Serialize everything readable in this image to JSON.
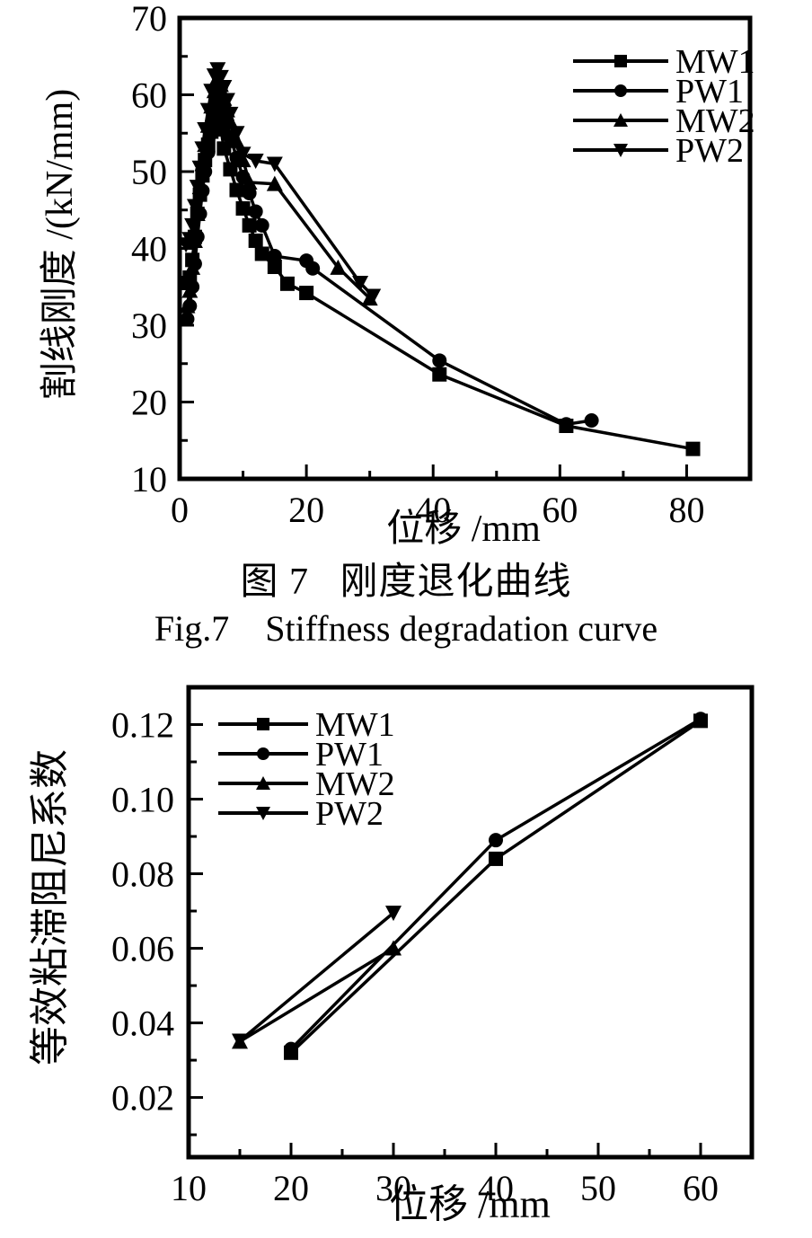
{
  "figure": {
    "caption_zh": "图 7   刚度退化曲线",
    "caption_en": "Fig.7    Stiffness degradation curve"
  },
  "colors": {
    "foreground": "#000000",
    "background": "#ffffff"
  },
  "chart_data": [
    {
      "type": "line",
      "title": "",
      "xlabel": "位移 /mm",
      "ylabel": "割线刚度 /(kN/mm)",
      "xlim": [
        0,
        90
      ],
      "ylim": [
        10,
        70
      ],
      "grid": false,
      "legend_position": "top-right",
      "xticks": {
        "values": [
          0,
          20,
          40,
          60,
          80
        ],
        "labels": [
          "0",
          "20",
          "40",
          "60",
          "80"
        ],
        "minor": [
          10,
          30,
          50,
          70,
          90
        ]
      },
      "yticks": {
        "values": [
          10,
          20,
          30,
          40,
          50,
          60,
          70
        ],
        "labels": [
          "10",
          "20",
          "30",
          "40",
          "50",
          "60",
          "70"
        ],
        "minor": [
          15,
          25,
          35,
          45,
          55,
          65
        ]
      },
      "series": [
        {
          "name": "MW1",
          "marker": "square",
          "points": [
            [
              1.2,
              35.5
            ],
            [
              1.6,
              36.2
            ],
            [
              2,
              38.5
            ],
            [
              2.4,
              41.5
            ],
            [
              2.8,
              44.5
            ],
            [
              3.2,
              47
            ],
            [
              3.6,
              49.5
            ],
            [
              4,
              51.5
            ],
            [
              4.5,
              53.5
            ],
            [
              5,
              55.2
            ],
            [
              5.5,
              56.5
            ],
            [
              6,
              57.5
            ],
            [
              6.5,
              55.5
            ],
            [
              7,
              53
            ],
            [
              8,
              50.3
            ],
            [
              9,
              47.6
            ],
            [
              10,
              45.2
            ],
            [
              11,
              43
            ],
            [
              12,
              41
            ],
            [
              13,
              39.3
            ],
            [
              15,
              37.6
            ],
            [
              17,
              35.4
            ],
            [
              20,
              34.2
            ],
            [
              41,
              23.6
            ],
            [
              61,
              16.9
            ],
            [
              81,
              13.9
            ]
          ]
        },
        {
          "name": "PW1",
          "marker": "circle",
          "points": [
            [
              1.2,
              30.8
            ],
            [
              1.6,
              32.5
            ],
            [
              2,
              35
            ],
            [
              2.4,
              38
            ],
            [
              2.8,
              41.5
            ],
            [
              3.2,
              44.5
            ],
            [
              3.6,
              47.5
            ],
            [
              4,
              50
            ],
            [
              4.5,
              52.5
            ],
            [
              5,
              55
            ],
            [
              5.5,
              57.5
            ],
            [
              6,
              59.5
            ],
            [
              6.5,
              61
            ],
            [
              7,
              58.5
            ],
            [
              7.5,
              56.5
            ],
            [
              8,
              54.5
            ],
            [
              9,
              51.8
            ],
            [
              10,
              49.3
            ],
            [
              11,
              47.2
            ],
            [
              12,
              44.8
            ],
            [
              13,
              43
            ],
            [
              15,
              39
            ],
            [
              20,
              38.4
            ],
            [
              21,
              37.4
            ],
            [
              41,
              25.4
            ],
            [
              61,
              17.1
            ],
            [
              65,
              17.6
            ]
          ]
        },
        {
          "name": "MW2",
          "marker": "triangle-up",
          "points": [
            [
              1.2,
              32.5
            ],
            [
              1.6,
              34.5
            ],
            [
              2,
              37.5
            ],
            [
              2.4,
              41
            ],
            [
              2.8,
              44.5
            ],
            [
              3.2,
              48
            ],
            [
              3.6,
              51
            ],
            [
              4,
              53.5
            ],
            [
              4.5,
              56
            ],
            [
              5,
              58.5
            ],
            [
              5.5,
              60.5
            ],
            [
              6,
              62.3
            ],
            [
              6.5,
              61.3
            ],
            [
              7,
              59.5
            ],
            [
              7.5,
              58
            ],
            [
              8,
              56.5
            ],
            [
              9,
              54
            ],
            [
              10,
              51.5
            ],
            [
              11,
              48.6
            ],
            [
              15,
              48.4
            ],
            [
              25,
              37.5
            ],
            [
              30,
              33.5
            ]
          ]
        },
        {
          "name": "PW2",
          "marker": "triangle-down",
          "points": [
            [
              1,
              40.5
            ],
            [
              1.6,
              41.2
            ],
            [
              2,
              43
            ],
            [
              2.4,
              45.5
            ],
            [
              2.8,
              48
            ],
            [
              3.2,
              50.5
            ],
            [
              3.6,
              53
            ],
            [
              4,
              55.5
            ],
            [
              4.5,
              58
            ],
            [
              5,
              60.5
            ],
            [
              5.5,
              62.5
            ],
            [
              6,
              63.3
            ],
            [
              6.5,
              62.3
            ],
            [
              7,
              61
            ],
            [
              7.5,
              59.3
            ],
            [
              8,
              57.5
            ],
            [
              9,
              55
            ],
            [
              10,
              52.3
            ],
            [
              12,
              51.4
            ],
            [
              15,
              51
            ],
            [
              28.5,
              35.5
            ],
            [
              30.5,
              33.8
            ]
          ]
        }
      ]
    },
    {
      "type": "line",
      "title": "",
      "xlabel": "位移 /mm",
      "ylabel": "等效粘滞阻尼系数",
      "xlim": [
        10,
        65
      ],
      "ylim": [
        0.004,
        0.13
      ],
      "grid": false,
      "legend_position": "top-left",
      "xticks": {
        "values": [
          10,
          20,
          30,
          40,
          50,
          60
        ],
        "labels": [
          "10",
          "20",
          "30",
          "40",
          "50",
          "60"
        ],
        "minor": [
          15,
          25,
          35,
          45,
          55,
          65
        ]
      },
      "yticks": {
        "values": [
          0.02,
          0.04,
          0.06,
          0.08,
          0.1,
          0.12
        ],
        "labels": [
          "0.02",
          "0.04",
          "0.06",
          "0.08",
          "0.10",
          "0.12"
        ],
        "minor": [
          0.01,
          0.03,
          0.05,
          0.07,
          0.09,
          0.11,
          0.13
        ]
      },
      "series": [
        {
          "name": "MW1",
          "marker": "square",
          "points": [
            [
              20,
              0.032
            ],
            [
              40,
              0.084
            ],
            [
              60,
              0.121
            ]
          ]
        },
        {
          "name": "PW1",
          "marker": "circle",
          "points": [
            [
              20,
              0.033
            ],
            [
              40,
              0.089
            ],
            [
              60,
              0.1215
            ]
          ]
        },
        {
          "name": "MW2",
          "marker": "triangle-up",
          "points": [
            [
              15,
              0.035
            ],
            [
              30,
              0.06
            ]
          ]
        },
        {
          "name": "PW2",
          "marker": "triangle-down",
          "points": [
            [
              15,
              0.0352
            ],
            [
              30,
              0.0695
            ]
          ]
        }
      ]
    }
  ]
}
